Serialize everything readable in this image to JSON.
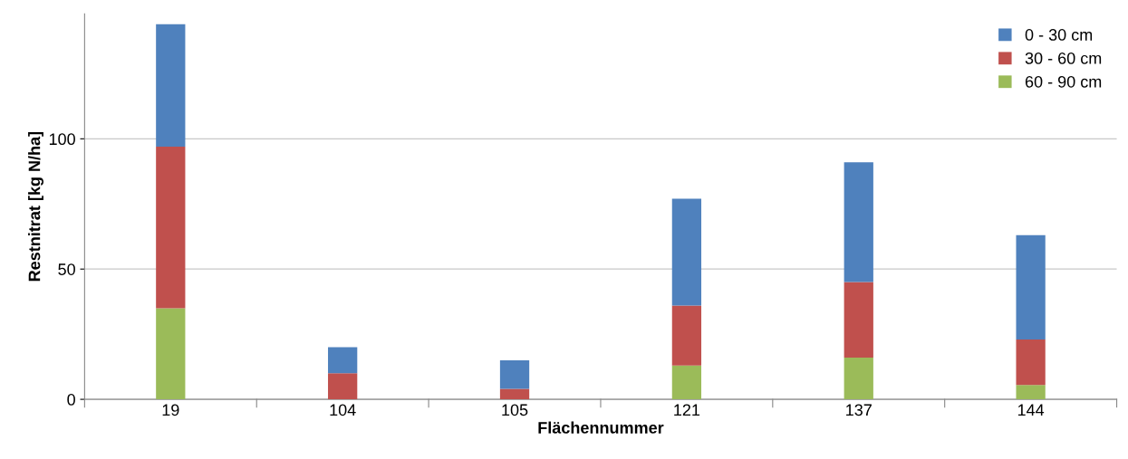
{
  "chart_data": {
    "type": "bar",
    "stacked": true,
    "xlabel": "Flächennummer",
    "ylabel": "Restnitrat [kg N/ha]",
    "categories": [
      "19",
      "104",
      "105",
      "121",
      "137",
      "144"
    ],
    "series": [
      {
        "name": "60 - 90 cm",
        "color": "#9bbb59",
        "values": [
          35,
          0,
          0,
          13,
          16,
          5.5
        ]
      },
      {
        "name": "30 - 60 cm",
        "color": "#c0504d",
        "values": [
          62,
          10,
          4,
          23,
          29,
          17.5
        ]
      },
      {
        "name": "0 - 30 cm",
        "color": "#4f81bd",
        "values": [
          47,
          10,
          11,
          41,
          46,
          40
        ]
      }
    ],
    "ylim": [
      0,
      148
    ],
    "yticks": [
      0,
      50,
      100
    ],
    "grid": "y",
    "legend": "top right"
  }
}
